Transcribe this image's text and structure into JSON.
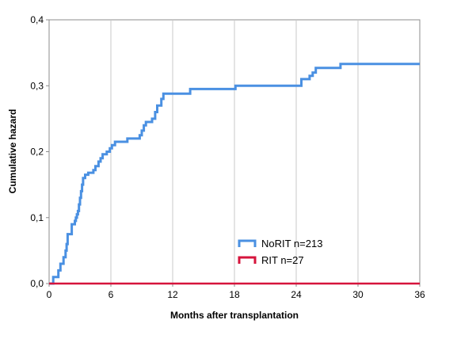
{
  "chart_data": {
    "type": "line",
    "step": true,
    "title": "",
    "xlabel": "Months after transplantation",
    "ylabel": "Cumulative hazard",
    "xlim": [
      0,
      36
    ],
    "ylim": [
      0,
      0.4
    ],
    "x_ticks": [
      0,
      6,
      12,
      18,
      24,
      30,
      36
    ],
    "x_tick_labels": [
      "0",
      "6",
      "12",
      "18",
      "24",
      "30",
      "36"
    ],
    "y_ticks": [
      0,
      0.1,
      0.2,
      0.3,
      0.4
    ],
    "y_tick_labels": [
      "0,0",
      "0,1",
      "0,2",
      "0,3",
      "0,4"
    ],
    "grid": "vertical",
    "legend_position": "lower-right",
    "series": [
      {
        "name": "NoRIT n=213",
        "color": "#4a90e2",
        "points": [
          [
            0,
            0
          ],
          [
            0.4,
            0.01
          ],
          [
            0.9,
            0.02
          ],
          [
            1.1,
            0.03
          ],
          [
            1.4,
            0.04
          ],
          [
            1.6,
            0.05
          ],
          [
            1.7,
            0.06
          ],
          [
            1.8,
            0.075
          ],
          [
            2.2,
            0.09
          ],
          [
            2.5,
            0.095
          ],
          [
            2.6,
            0.1
          ],
          [
            2.7,
            0.105
          ],
          [
            2.8,
            0.11
          ],
          [
            2.9,
            0.12
          ],
          [
            3.0,
            0.13
          ],
          [
            3.1,
            0.14
          ],
          [
            3.2,
            0.15
          ],
          [
            3.3,
            0.16
          ],
          [
            3.5,
            0.165
          ],
          [
            3.8,
            0.168
          ],
          [
            4.3,
            0.172
          ],
          [
            4.5,
            0.178
          ],
          [
            4.8,
            0.185
          ],
          [
            5.0,
            0.19
          ],
          [
            5.2,
            0.196
          ],
          [
            5.6,
            0.2
          ],
          [
            5.9,
            0.205
          ],
          [
            6.1,
            0.21
          ],
          [
            6.4,
            0.215
          ],
          [
            7.6,
            0.22
          ],
          [
            8.8,
            0.225
          ],
          [
            9.0,
            0.232
          ],
          [
            9.2,
            0.24
          ],
          [
            9.4,
            0.245
          ],
          [
            10.0,
            0.25
          ],
          [
            10.3,
            0.26
          ],
          [
            10.5,
            0.27
          ],
          [
            10.9,
            0.28
          ],
          [
            11.1,
            0.288
          ],
          [
            13.7,
            0.295
          ],
          [
            18.1,
            0.3
          ],
          [
            24.5,
            0.31
          ],
          [
            25.3,
            0.315
          ],
          [
            25.6,
            0.32
          ],
          [
            25.9,
            0.327
          ],
          [
            28.3,
            0.333
          ],
          [
            36,
            0.333
          ]
        ]
      },
      {
        "name": "RIT n=27",
        "color": "#d6143c",
        "points": [
          [
            0,
            0
          ],
          [
            36,
            0
          ]
        ]
      }
    ]
  }
}
